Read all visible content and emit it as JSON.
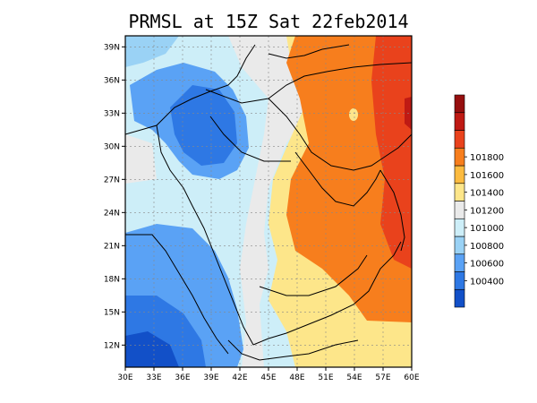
{
  "title": "PRMSL at 15Z Sat 22feb2014",
  "chart_data": {
    "type": "heatmap",
    "title": "PRMSL at 15Z Sat 22feb2014",
    "x_range_deg": [
      30,
      60
    ],
    "y_range_deg": [
      10,
      40
    ],
    "x_ticks": [
      "30E",
      "33E",
      "36E",
      "39E",
      "42E",
      "45E",
      "48E",
      "51E",
      "54E",
      "57E",
      "60E"
    ],
    "y_ticks": [
      "12N",
      "15N",
      "18N",
      "21N",
      "24N",
      "27N",
      "30N",
      "33N",
      "36N",
      "39N"
    ],
    "grid": true,
    "colorbar": {
      "placement": "right",
      "bands": [
        {
          "color": "#1250c8"
        },
        {
          "color": "#2e78e4"
        },
        {
          "color": "#5aa2f5"
        },
        {
          "color": "#9ad2f5"
        },
        {
          "color": "#cdeef8"
        },
        {
          "color": "#eaeaea"
        },
        {
          "color": "#fde68a"
        },
        {
          "color": "#fcbb40"
        },
        {
          "color": "#f77e1d"
        },
        {
          "color": "#e9421c"
        },
        {
          "color": "#bf1a14"
        },
        {
          "color": "#960f0f"
        }
      ],
      "labels": [
        "100400",
        "100600",
        "100800",
        "101000",
        "101200",
        "101400",
        "101600",
        "101800"
      ]
    }
  }
}
